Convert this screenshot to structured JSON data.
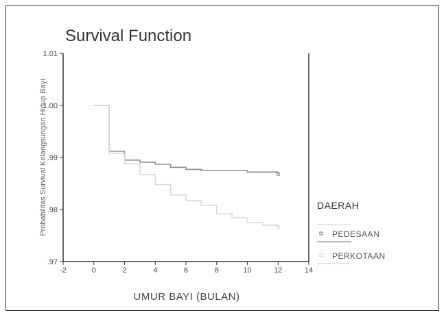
{
  "chart_data": {
    "type": "line",
    "title": "Survival Function",
    "xlabel": "UMUR BAYI (BULAN)",
    "ylabel": "Probabilitas Survival Kelangsungan Hidup Bayi",
    "xlim": [
      -2,
      14
    ],
    "ylim": [
      0.97,
      1.01
    ],
    "x_ticks": [
      -2,
      0,
      2,
      4,
      6,
      8,
      10,
      12,
      14
    ],
    "y_ticks": [
      {
        "value": 0.97,
        "label": ".97"
      },
      {
        "value": 0.98,
        "label": ".98"
      },
      {
        "value": 0.99,
        "label": ".99"
      },
      {
        "value": 1.0,
        "label": "1.00"
      },
      {
        "value": 1.01,
        "label": "1.01"
      }
    ],
    "legend_title": "DAERAH",
    "legend_position": "right",
    "grid": false,
    "series": [
      {
        "name": "PEDESAAN",
        "color": "#8a8a8a",
        "steps": [
          [
            0,
            1.0
          ],
          [
            1,
            0.9912
          ],
          [
            2,
            0.9895
          ],
          [
            3,
            0.9891
          ],
          [
            4,
            0.9887
          ],
          [
            5,
            0.9881
          ],
          [
            6,
            0.9877
          ],
          [
            7,
            0.9875
          ],
          [
            10,
            0.9872
          ],
          [
            12,
            0.9868
          ]
        ]
      },
      {
        "name": "PERKOTAAN",
        "color": "#d8d8d8",
        "steps": [
          [
            0,
            1.0
          ],
          [
            1,
            0.9908
          ],
          [
            2,
            0.9888
          ],
          [
            3,
            0.9867
          ],
          [
            4,
            0.9848
          ],
          [
            5,
            0.9828
          ],
          [
            6,
            0.9817
          ],
          [
            7,
            0.9808
          ],
          [
            8,
            0.9792
          ],
          [
            9,
            0.9784
          ],
          [
            10,
            0.9775
          ],
          [
            11,
            0.977
          ],
          [
            12,
            0.9765
          ]
        ]
      }
    ]
  }
}
